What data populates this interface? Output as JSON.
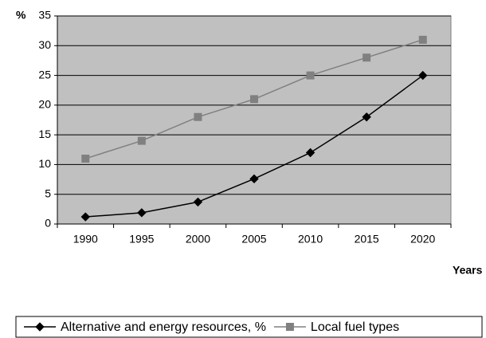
{
  "chart_data": {
    "type": "line",
    "y_label": "%",
    "x_label": "Years",
    "categories": [
      "1990",
      "1995",
      "2000",
      "2005",
      "2010",
      "2015",
      "2020"
    ],
    "series": [
      {
        "name": "Alternative and energy resources, %",
        "color": "#000000",
        "marker": "diamond",
        "values": [
          1.2,
          1.9,
          3.7,
          7.6,
          12,
          18,
          25
        ]
      },
      {
        "name": "Local fuel types",
        "color": "#808080",
        "marker": "square",
        "values": [
          11,
          14,
          18,
          21,
          25,
          28,
          31
        ]
      }
    ],
    "ylim": [
      0,
      35
    ],
    "yticks": [
      0,
      5,
      10,
      15,
      20,
      25,
      30,
      35
    ],
    "grid": true,
    "plot_background": "#c0c0c0"
  }
}
